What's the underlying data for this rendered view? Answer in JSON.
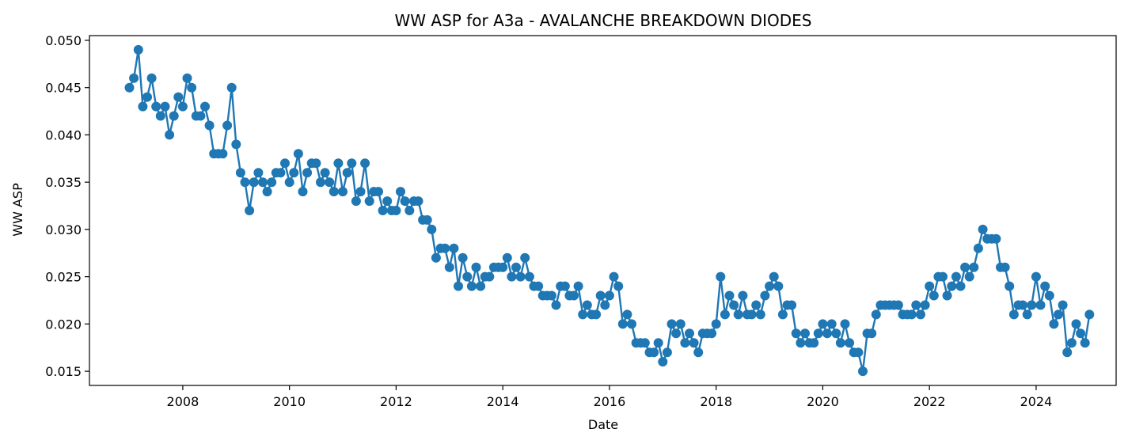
{
  "chart_data": {
    "type": "line",
    "title": "WW ASP for A3a - AVALANCHE BREAKDOWN DIODES",
    "xlabel": "Date",
    "ylabel": "WW ASP",
    "x_ticks": [
      "2008",
      "2010",
      "2012",
      "2014",
      "2016",
      "2018",
      "2020",
      "2022",
      "2024"
    ],
    "y_ticks": [
      "0.015",
      "0.020",
      "0.025",
      "0.030",
      "0.035",
      "0.040",
      "0.045",
      "0.050"
    ],
    "xlim": [
      "2006-04",
      "2025-07"
    ],
    "ylim": [
      0.0135,
      0.0505
    ],
    "color": "#1f77b4",
    "marker": "circle",
    "grid": false,
    "x_start": "2007-01",
    "x_step": "1 month",
    "series": [
      {
        "values": [
          0.045,
          0.046,
          0.049,
          0.043,
          0.044,
          0.046,
          0.043,
          0.042,
          0.043,
          0.04,
          0.042,
          0.044,
          0.043,
          0.046,
          0.045,
          0.042,
          0.042,
          0.043,
          0.041,
          0.038,
          0.038,
          0.038,
          0.041,
          0.045,
          0.039,
          0.036,
          0.035,
          0.032,
          0.035,
          0.036,
          0.035,
          0.034,
          0.035,
          0.036,
          0.036,
          0.037,
          0.035,
          0.036,
          0.038,
          0.034,
          0.036,
          0.037,
          0.037,
          0.035,
          0.036,
          0.035,
          0.034,
          0.037,
          0.034,
          0.036,
          0.037,
          0.033,
          0.034,
          0.037,
          0.033,
          0.034,
          0.034,
          0.032,
          0.033,
          0.032,
          0.032,
          0.034,
          0.033,
          0.032,
          0.033,
          0.033,
          0.031,
          0.031,
          0.03,
          0.027,
          0.028,
          0.028,
          0.026,
          0.028,
          0.024,
          0.027,
          0.025,
          0.024,
          0.026,
          0.024,
          0.025,
          0.025,
          0.026,
          0.026,
          0.026,
          0.027,
          0.025,
          0.026,
          0.025,
          0.027,
          0.025,
          0.024,
          0.024,
          0.023,
          0.023,
          0.023,
          0.022,
          0.024,
          0.024,
          0.023,
          0.023,
          0.024,
          0.021,
          0.022,
          0.021,
          0.021,
          0.023,
          0.022,
          0.023,
          0.025,
          0.024,
          0.02,
          0.021,
          0.02,
          0.018,
          0.018,
          0.018,
          0.017,
          0.017,
          0.018,
          0.016,
          0.017,
          0.02,
          0.019,
          0.02,
          0.018,
          0.019,
          0.018,
          0.017,
          0.019,
          0.019,
          0.019,
          0.02,
          0.025,
          0.021,
          0.023,
          0.022,
          0.021,
          0.023,
          0.021,
          0.021,
          0.022,
          0.021,
          0.023,
          0.024,
          0.025,
          0.024,
          0.021,
          0.022,
          0.022,
          0.019,
          0.018,
          0.019,
          0.018,
          0.018,
          0.019,
          0.02,
          0.019,
          0.02,
          0.019,
          0.018,
          0.02,
          0.018,
          0.017,
          0.017,
          0.015,
          0.019,
          0.019,
          0.021,
          0.022,
          0.022,
          0.022,
          0.022,
          0.022,
          0.021,
          0.021,
          0.021,
          0.022,
          0.021,
          0.022,
          0.024,
          0.023,
          0.025,
          0.025,
          0.023,
          0.024,
          0.025,
          0.024,
          0.026,
          0.025,
          0.026,
          0.028,
          0.03,
          0.029,
          0.029,
          0.029,
          0.026,
          0.026,
          0.024,
          0.021,
          0.022,
          0.022,
          0.021,
          0.022,
          0.025,
          0.022,
          0.024,
          0.023,
          0.02,
          0.021,
          0.022,
          0.017,
          0.018,
          0.02,
          0.019,
          0.018,
          0.021
        ]
      }
    ]
  }
}
